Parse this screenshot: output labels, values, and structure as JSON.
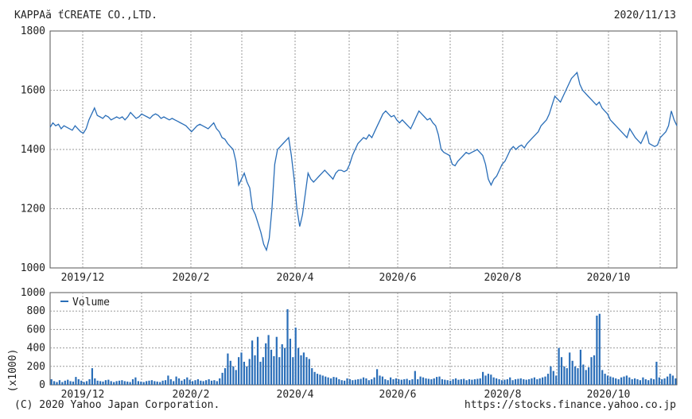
{
  "header": {
    "company": "KAPPAă ťCREATE CO.,LTD.",
    "date": "2020/11/13"
  },
  "footer": {
    "copyright": "(C) 2020 Yahoo Japan Corporation.",
    "source": "https://stocks.finance.yahoo.co.jp"
  },
  "colors": {
    "line": "#2a6eb8",
    "bar": "#2a6eb8",
    "grid": "#9a9a9a",
    "axis": "#555555"
  },
  "chart_data": [
    {
      "type": "line",
      "title": "",
      "ylim": [
        1000,
        1800
      ],
      "y_ticks": [
        "1800",
        "1600",
        "1400",
        "1200",
        "1000"
      ],
      "x_labels": [
        "2019/12",
        "2020/2",
        "2020/4",
        "2020/6",
        "2020/8",
        "2020/10"
      ],
      "grid": true,
      "series": [
        {
          "values": [
            1475,
            1490,
            1480,
            1485,
            1470,
            1480,
            1475,
            1470,
            1465,
            1480,
            1470,
            1460,
            1455,
            1470,
            1500,
            1520,
            1540,
            1515,
            1510,
            1505,
            1515,
            1510,
            1500,
            1505,
            1510,
            1505,
            1510,
            1500,
            1510,
            1525,
            1515,
            1505,
            1510,
            1520,
            1515,
            1510,
            1505,
            1515,
            1520,
            1515,
            1505,
            1510,
            1505,
            1500,
            1505,
            1500,
            1495,
            1490,
            1485,
            1480,
            1470,
            1460,
            1470,
            1480,
            1485,
            1480,
            1475,
            1470,
            1480,
            1490,
            1470,
            1460,
            1440,
            1435,
            1420,
            1410,
            1400,
            1360,
            1280,
            1300,
            1320,
            1290,
            1270,
            1200,
            1180,
            1150,
            1120,
            1080,
            1060,
            1100,
            1200,
            1350,
            1400,
            1410,
            1420,
            1430,
            1440,
            1380,
            1300,
            1200,
            1140,
            1180,
            1250,
            1320,
            1300,
            1290,
            1300,
            1310,
            1320,
            1330,
            1320,
            1310,
            1300,
            1320,
            1330,
            1330,
            1325,
            1330,
            1350,
            1380,
            1400,
            1420,
            1430,
            1440,
            1435,
            1450,
            1440,
            1460,
            1480,
            1500,
            1520,
            1530,
            1520,
            1510,
            1515,
            1500,
            1490,
            1500,
            1490,
            1480,
            1470,
            1490,
            1510,
            1530,
            1520,
            1510,
            1500,
            1505,
            1490,
            1480,
            1450,
            1400,
            1390,
            1385,
            1380,
            1350,
            1345,
            1360,
            1370,
            1380,
            1390,
            1385,
            1390,
            1395,
            1400,
            1390,
            1380,
            1350,
            1300,
            1280,
            1300,
            1310,
            1330,
            1350,
            1360,
            1380,
            1400,
            1410,
            1400,
            1410,
            1415,
            1405,
            1420,
            1430,
            1440,
            1450,
            1460,
            1480,
            1490,
            1500,
            1520,
            1550,
            1580,
            1570,
            1560,
            1580,
            1600,
            1620,
            1640,
            1650,
            1660,
            1620,
            1600,
            1590,
            1580,
            1570,
            1560,
            1550,
            1560,
            1540,
            1530,
            1520,
            1500,
            1490,
            1480,
            1470,
            1460,
            1450,
            1440,
            1470,
            1455,
            1440,
            1430,
            1420,
            1440,
            1460,
            1420,
            1415,
            1410,
            1415,
            1440,
            1450,
            1460,
            1480,
            1530,
            1500,
            1480
          ]
        }
      ]
    },
    {
      "type": "bar",
      "ylim": [
        0,
        1000
      ],
      "y_ticks": [
        "1000",
        "800",
        "600",
        "400",
        "200",
        "0"
      ],
      "ylabel": "(x1000)",
      "x_labels": [
        "2019/12",
        "2020/2",
        "2020/4",
        "2020/6",
        "2020/8",
        "2020/10"
      ],
      "legend": "Volume",
      "legend_position": "top-left",
      "grid": true,
      "series": [
        {
          "name": "Volume",
          "values": [
            60,
            40,
            30,
            50,
            30,
            45,
            55,
            40,
            35,
            85,
            60,
            45,
            30,
            40,
            60,
            180,
            70,
            45,
            40,
            35,
            50,
            55,
            40,
            30,
            40,
            45,
            50,
            40,
            35,
            30,
            60,
            80,
            40,
            35,
            30,
            40,
            45,
            50,
            40,
            35,
            30,
            45,
            50,
            100,
            60,
            40,
            90,
            70,
            45,
            60,
            80,
            55,
            40,
            50,
            60,
            45,
            40,
            50,
            60,
            45,
            50,
            40,
            70,
            130,
            180,
            340,
            260,
            200,
            160,
            300,
            350,
            250,
            200,
            280,
            480,
            320,
            520,
            250,
            300,
            450,
            540,
            380,
            310,
            520,
            300,
            440,
            400,
            820,
            500,
            300,
            620,
            400,
            320,
            350,
            300,
            280,
            180,
            140,
            120,
            110,
            100,
            90,
            80,
            70,
            85,
            80,
            60,
            50,
            45,
            70,
            60,
            50,
            55,
            60,
            65,
            80,
            70,
            50,
            60,
            80,
            170,
            100,
            90,
            60,
            50,
            80,
            60,
            70,
            60,
            55,
            60,
            65,
            50,
            60,
            150,
            60,
            90,
            80,
            70,
            65,
            60,
            70,
            85,
            90,
            60,
            55,
            50,
            45,
            60,
            70,
            55,
            60,
            65,
            50,
            60,
            55,
            60,
            65,
            70,
            140,
            100,
            120,
            110,
            80,
            70,
            60,
            50,
            55,
            60,
            80,
            50,
            60,
            65,
            70,
            60,
            55,
            60,
            70,
            80,
            60,
            70,
            80,
            90,
            120,
            200,
            150,
            100,
            400,
            300,
            200,
            180,
            350,
            260,
            200,
            180,
            380,
            220,
            160,
            190,
            300,
            320,
            750,
            770,
            160,
            120,
            100,
            90,
            80,
            70,
            60,
            80,
            90,
            100,
            80,
            60,
            70,
            60,
            50,
            80,
            60,
            50,
            70,
            60,
            250,
            80,
            60,
            70,
            90,
            120,
            100,
            70
          ]
        }
      ]
    }
  ]
}
